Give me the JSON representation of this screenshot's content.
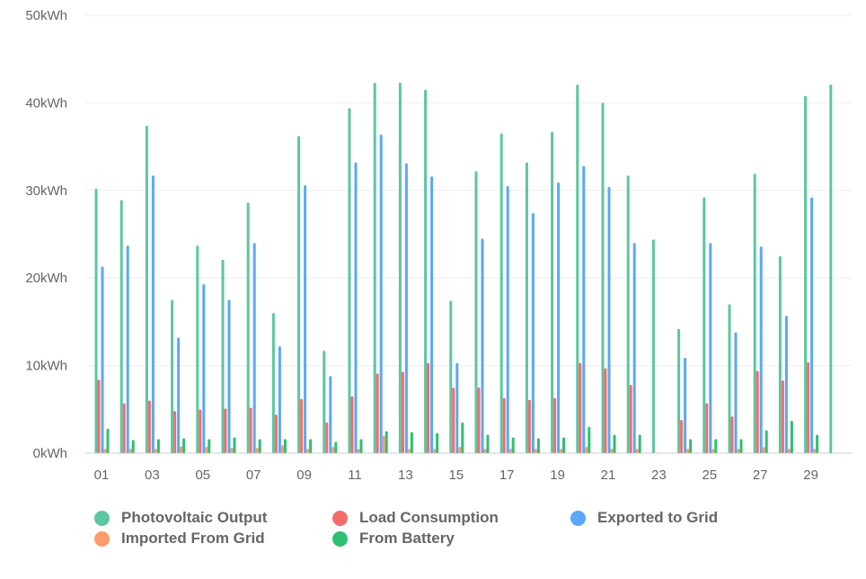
{
  "chart_data": {
    "type": "bar",
    "title": "",
    "xlabel": "",
    "ylabel": "",
    "unit": "kWh",
    "ylim": [
      0,
      50
    ],
    "yticks": [
      "0kWh",
      "10kWh",
      "20kWh",
      "30kWh",
      "40kWh",
      "50kWh"
    ],
    "grid": true,
    "legend_position": "bottom",
    "categories": [
      "01",
      "02",
      "03",
      "04",
      "05",
      "06",
      "07",
      "08",
      "09",
      "10",
      "11",
      "12",
      "13",
      "14",
      "15",
      "16",
      "17",
      "18",
      "19",
      "20",
      "21",
      "22",
      "23",
      "24",
      "25",
      "26",
      "27",
      "28",
      "29",
      "30"
    ],
    "xtick_labels": [
      "01",
      "03",
      "05",
      "07",
      "09",
      "11",
      "13",
      "15",
      "17",
      "19",
      "21",
      "23",
      "25",
      "27",
      "29"
    ],
    "series": [
      {
        "name": "Photovoltaic Output",
        "color": "#5cc6a0",
        "values": [
          30.2,
          28.9,
          37.4,
          17.5,
          23.7,
          22.1,
          28.6,
          16.0,
          36.2,
          11.7,
          39.4,
          42.3,
          42.3,
          41.5,
          17.4,
          32.2,
          36.5,
          33.2,
          36.7,
          42.1,
          40.0,
          31.7,
          24.4,
          14.2,
          29.2,
          17.0,
          31.9,
          22.5,
          40.8,
          42.1
        ]
      },
      {
        "name": "Load Consumption",
        "color": "#f56c6c",
        "values": [
          8.4,
          5.7,
          6.0,
          4.8,
          5.0,
          5.1,
          5.2,
          4.4,
          6.2,
          3.5,
          6.5,
          9.1,
          9.3,
          10.3,
          7.5,
          7.5,
          6.3,
          6.1,
          6.3,
          10.3,
          9.7,
          7.8,
          0,
          3.8,
          5.7,
          4.2,
          9.4,
          8.3,
          10.4,
          0
        ]
      },
      {
        "name": "Exported to Grid",
        "color": "#5aa8f7",
        "values": [
          21.3,
          23.7,
          31.7,
          13.2,
          19.3,
          17.5,
          24.0,
          12.2,
          30.6,
          8.8,
          33.2,
          36.4,
          33.1,
          31.6,
          10.3,
          24.5,
          30.5,
          27.4,
          30.9,
          32.8,
          30.4,
          24.0,
          0,
          10.9,
          24.0,
          13.8,
          23.6,
          15.7,
          29.2,
          0
        ]
      },
      {
        "name": "Imported From Grid",
        "color": "#ff9c6a",
        "values": [
          0.5,
          0.5,
          0.5,
          0.8,
          0.7,
          0.6,
          0.6,
          0.9,
          0.5,
          0.7,
          0.5,
          2.0,
          0.5,
          0.5,
          0.7,
          0.5,
          0.5,
          0.5,
          0.5,
          0.7,
          0.5,
          0.5,
          0,
          0.5,
          0.5,
          0.5,
          0.7,
          0.5,
          0.5,
          0
        ]
      },
      {
        "name": "From Battery",
        "color": "#2fbf71",
        "values": [
          2.8,
          1.5,
          1.6,
          1.7,
          1.6,
          1.8,
          1.6,
          1.6,
          1.6,
          1.3,
          1.6,
          2.5,
          2.4,
          2.3,
          3.5,
          2.1,
          1.8,
          1.7,
          1.8,
          3.0,
          2.1,
          2.1,
          0,
          1.6,
          1.6,
          1.6,
          2.6,
          3.7,
          2.1,
          0
        ]
      }
    ]
  }
}
